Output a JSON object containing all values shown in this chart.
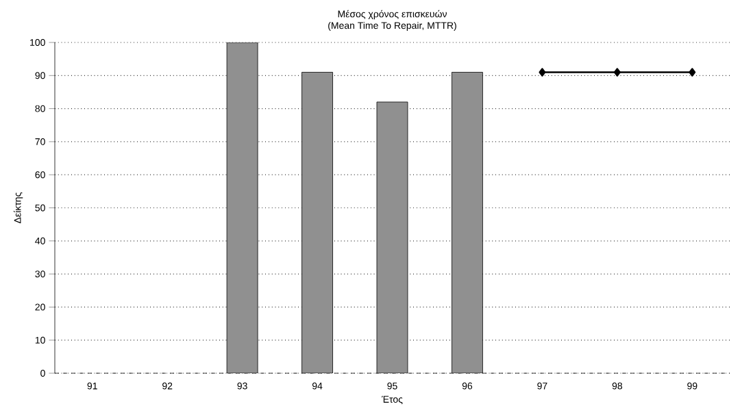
{
  "chart_data": {
    "type": "bar",
    "title": "Μέσος χρόνος επισκευών",
    "subtitle": "(Mean Time To Repair, MTTR)",
    "xlabel": "Έτος",
    "ylabel": "Δείκτης",
    "categories": [
      "91",
      "92",
      "93",
      "94",
      "95",
      "96",
      "97",
      "98",
      "99"
    ],
    "series": [
      {
        "color": "#909090",
        "values": [
          null,
          null,
          100,
          91,
          82,
          91,
          null,
          null,
          null
        ]
      },
      {
        "type": "line",
        "color": "#000000",
        "marker": "diamond",
        "line_style": "solid",
        "values": [
          null,
          null,
          null,
          null,
          null,
          null,
          91,
          91,
          91
        ]
      }
    ],
    "ylim": [
      0,
      100
    ],
    "yticks": [
      0,
      10,
      20,
      30,
      40,
      50,
      60,
      70,
      80,
      90,
      100
    ],
    "grid": "y"
  }
}
